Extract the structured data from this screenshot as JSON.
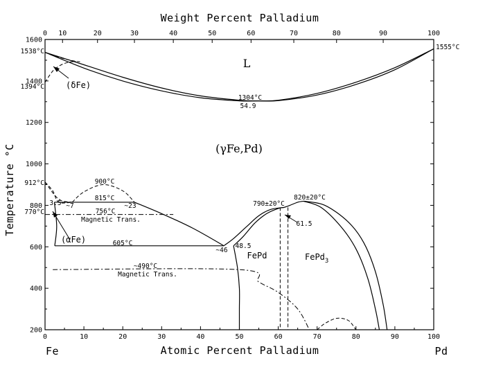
{
  "chart_data": {
    "type": "phase-diagram",
    "title": "Weight Percent Palladium",
    "xlabel": "Atomic Percent Palladium",
    "ylabel": "Temperature °C",
    "xlim": [
      0,
      100
    ],
    "ylim": [
      200,
      1600
    ],
    "x_ticks": [
      "0",
      "10",
      "20",
      "30",
      "40",
      "50",
      "60",
      "70",
      "80",
      "90",
      "100"
    ],
    "y_ticks": [
      "200",
      "400",
      "600",
      "800",
      "1000",
      "1200",
      "1400",
      "1600"
    ],
    "wt_ticks": [
      {
        "wt": 0,
        "at": 0,
        "label": "0"
      },
      {
        "wt": 10,
        "at": 4.5,
        "label": "10"
      },
      {
        "wt": 20,
        "at": 13.5,
        "label": "20"
      },
      {
        "wt": 30,
        "at": 23,
        "label": "30"
      },
      {
        "wt": 40,
        "at": 33,
        "label": "40"
      },
      {
        "wt": 50,
        "at": 43,
        "label": "50"
      },
      {
        "wt": 60,
        "at": 53,
        "label": "60"
      },
      {
        "wt": 70,
        "at": 64,
        "label": "70"
      },
      {
        "wt": 80,
        "at": 75,
        "label": "80"
      },
      {
        "wt": 90,
        "at": 87,
        "label": "90"
      },
      {
        "wt": 100,
        "at": 100,
        "label": "100"
      }
    ],
    "element_left": "Fe",
    "element_right": "Pd",
    "left_temp_labels": {
      "t1538": "1538°C",
      "t1394": "1394°C",
      "t912": "912°C",
      "t770": "770°C"
    },
    "right_temp_label": "1555°C",
    "phases": {
      "liquid": "L",
      "gamma": "(γFe,Pd)",
      "delta": "(δFe)",
      "alpha": "(αFe)",
      "fepd": "FePd",
      "fepd3_base": "FePd",
      "fepd3_sub": "3"
    },
    "points": {
      "min_temp": "1304°C",
      "min_comp": "54.9",
      "t900": "900°C",
      "t815": "815°C",
      "t756": "756°C",
      "t605": "605°C",
      "t490": "~490°C",
      "t790": "790±20°C",
      "t820": "820±20°C",
      "c35": "3.5",
      "c7": "~7",
      "c23": "~23",
      "c46": "~46",
      "c485": "48.5",
      "c615": "61.5"
    },
    "magnetic_trans_upper": "Magnetic Trans.",
    "magnetic_trans_lower": "Magnetic Trans.",
    "series": [
      {
        "name": "liquidus",
        "style": "solid",
        "points": [
          [
            0,
            1538
          ],
          [
            10,
            1478
          ],
          [
            20,
            1418
          ],
          [
            30,
            1366
          ],
          [
            40,
            1328
          ],
          [
            50,
            1307
          ],
          [
            54.9,
            1304
          ],
          [
            60,
            1307
          ],
          [
            70,
            1340
          ],
          [
            80,
            1394
          ],
          [
            90,
            1464
          ],
          [
            100,
            1555
          ]
        ]
      },
      {
        "name": "solidus",
        "style": "solid",
        "points": [
          [
            0,
            1538
          ],
          [
            10,
            1462
          ],
          [
            20,
            1400
          ],
          [
            30,
            1352
          ],
          [
            40,
            1319
          ],
          [
            50,
            1304
          ],
          [
            54.9,
            1304
          ],
          [
            60,
            1305
          ],
          [
            70,
            1332
          ],
          [
            80,
            1383
          ],
          [
            90,
            1454
          ],
          [
            100,
            1555
          ]
        ]
      },
      {
        "name": "delta-boundary-upper",
        "style": "dashed",
        "points": [
          [
            0,
            1538
          ],
          [
            4,
            1512
          ],
          [
            7,
            1498
          ],
          [
            9,
            1492
          ]
        ]
      },
      {
        "name": "delta-boundary-lower",
        "style": "dashed",
        "points": [
          [
            0,
            1394
          ],
          [
            2,
            1448
          ],
          [
            4,
            1476
          ],
          [
            6,
            1490
          ],
          [
            8,
            1494
          ]
        ]
      },
      {
        "name": "gamma-alpha-upper",
        "style": "dashed",
        "points": [
          [
            0,
            912
          ],
          [
            3.5,
            830
          ],
          [
            7,
            815
          ]
        ]
      },
      {
        "name": "gamma-alpha-lower",
        "style": "dashed",
        "points": [
          [
            0,
            912
          ],
          [
            2,
            870
          ],
          [
            3.5,
            815
          ],
          [
            7,
            815
          ]
        ]
      },
      {
        "name": "metastable-dome",
        "style": "dashed",
        "points": [
          [
            7,
            815
          ],
          [
            10,
            865
          ],
          [
            15,
            900
          ],
          [
            20,
            870
          ],
          [
            23,
            815
          ]
        ]
      },
      {
        "name": "gamma-solvus",
        "style": "solid",
        "points": [
          [
            23,
            815
          ],
          [
            30,
            760
          ],
          [
            38,
            690
          ],
          [
            46,
            605
          ]
        ]
      },
      {
        "name": "alpha-solvus",
        "style": "solid",
        "points": [
          [
            2.4,
            815
          ],
          [
            3,
            700
          ],
          [
            2.5,
            605
          ]
        ]
      },
      {
        "name": "fepd-left",
        "style": "solid",
        "points": [
          [
            46,
            605
          ],
          [
            48.5,
            640
          ],
          [
            52,
            700
          ],
          [
            55,
            750
          ],
          [
            58,
            780
          ],
          [
            61.5,
            790
          ]
        ]
      },
      {
        "name": "fepd-left-inner",
        "style": "solid",
        "points": [
          [
            48.5,
            605
          ],
          [
            51,
            650
          ],
          [
            54,
            715
          ],
          [
            57,
            760
          ],
          [
            60,
            785
          ],
          [
            61.5,
            790
          ]
        ]
      },
      {
        "name": "fepd-bottom",
        "style": "solid",
        "points": [
          [
            48.5,
            605
          ],
          [
            49.5,
            500
          ],
          [
            50,
            400
          ],
          [
            50,
            300
          ],
          [
            50,
            200
          ]
        ]
      },
      {
        "name": "fepd3-left",
        "style": "solid",
        "points": [
          [
            61.5,
            790
          ],
          [
            63,
            800
          ],
          [
            65,
            815
          ],
          [
            66.5,
            820
          ]
        ]
      },
      {
        "name": "fepd3-right-outer",
        "style": "solid",
        "points": [
          [
            66.5,
            820
          ],
          [
            72,
            800
          ],
          [
            78,
            720
          ],
          [
            82,
            620
          ],
          [
            85,
            480
          ],
          [
            87,
            320
          ],
          [
            88,
            200
          ]
        ]
      },
      {
        "name": "fepd3-right-inner",
        "style": "solid",
        "points": [
          [
            66.5,
            820
          ],
          [
            71,
            790
          ],
          [
            76,
            700
          ],
          [
            80,
            590
          ],
          [
            83,
            450
          ],
          [
            85,
            300
          ],
          [
            86,
            200
          ]
        ]
      },
      {
        "name": "order-dash-fepd",
        "style": "dashed",
        "points": [
          [
            60.5,
            790
          ],
          [
            60.5,
            200
          ]
        ]
      },
      {
        "name": "order-dash-fepd3",
        "style": "dashed",
        "points": [
          [
            62.5,
            790
          ],
          [
            62.5,
            200
          ]
        ]
      },
      {
        "name": "lower-dome",
        "style": "dashed",
        "points": [
          [
            70,
            200
          ],
          [
            72,
            230
          ],
          [
            75,
            255
          ],
          [
            78,
            245
          ],
          [
            80,
            200
          ]
        ]
      },
      {
        "name": "magnetic-upper",
        "style": "dashdot",
        "points": [
          [
            0,
            756
          ],
          [
            33,
            756
          ]
        ]
      },
      {
        "name": "magnetic-lower",
        "style": "dashdot",
        "points": [
          [
            2,
            490
          ],
          [
            50,
            490
          ],
          [
            55,
            430
          ],
          [
            60,
            380
          ],
          [
            65,
            300
          ],
          [
            68,
            200
          ]
        ]
      }
    ]
  }
}
